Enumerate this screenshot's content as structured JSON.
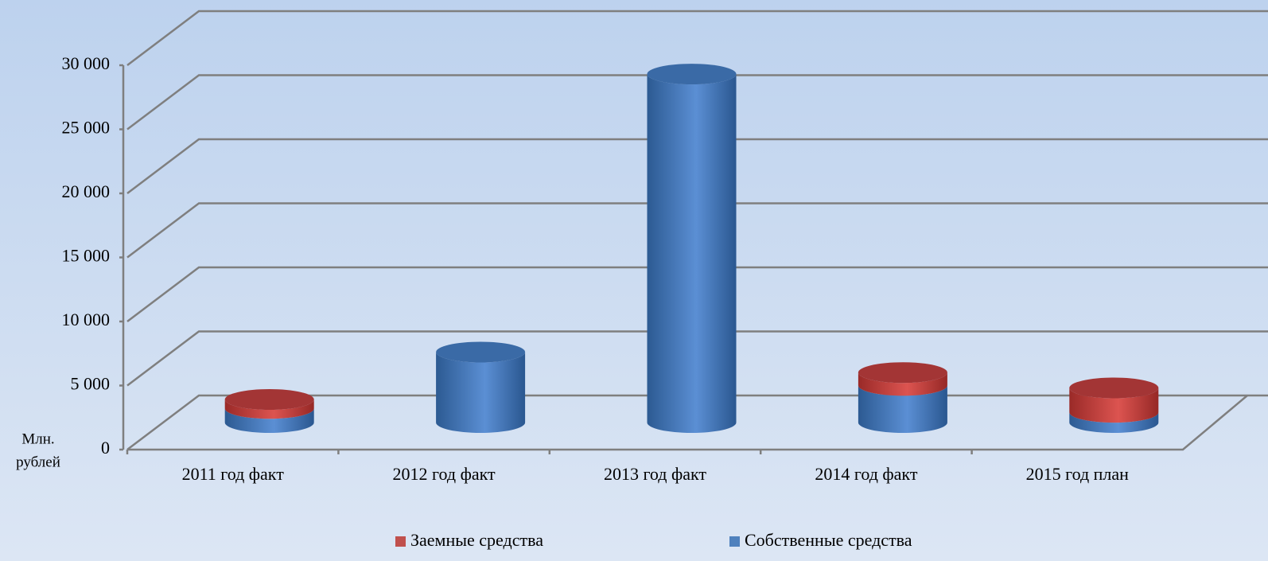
{
  "chart_data": {
    "type": "bar3d_stacked",
    "y_label": [
      "Млн.",
      "рублей"
    ],
    "categories": [
      "2011 год факт",
      "2012 год факт",
      "2013 год факт",
      "2014 год факт",
      "2015 год план"
    ],
    "series": [
      {
        "name": "Собственные средства",
        "color": "#4f81bd",
        "values": [
          1100,
          5500,
          27200,
          2900,
          800
        ]
      },
      {
        "name": "Заемные средства",
        "color": "#c0504d",
        "values": [
          700,
          0,
          0,
          1000,
          1900
        ]
      }
    ],
    "legend_order": [
      1,
      0
    ],
    "ylim": [
      0,
      30000
    ],
    "yticks": [
      0,
      {
        "value": 5000,
        "label": "5 000"
      },
      {
        "value": 10000,
        "label": "10 000"
      },
      {
        "value": 15000,
        "label": "15 000"
      },
      {
        "value": 20000,
        "label": "20 000"
      },
      {
        "value": 25000,
        "label": "25 000"
      },
      {
        "value": 30000,
        "label": "30 000"
      }
    ],
    "grid": true
  }
}
